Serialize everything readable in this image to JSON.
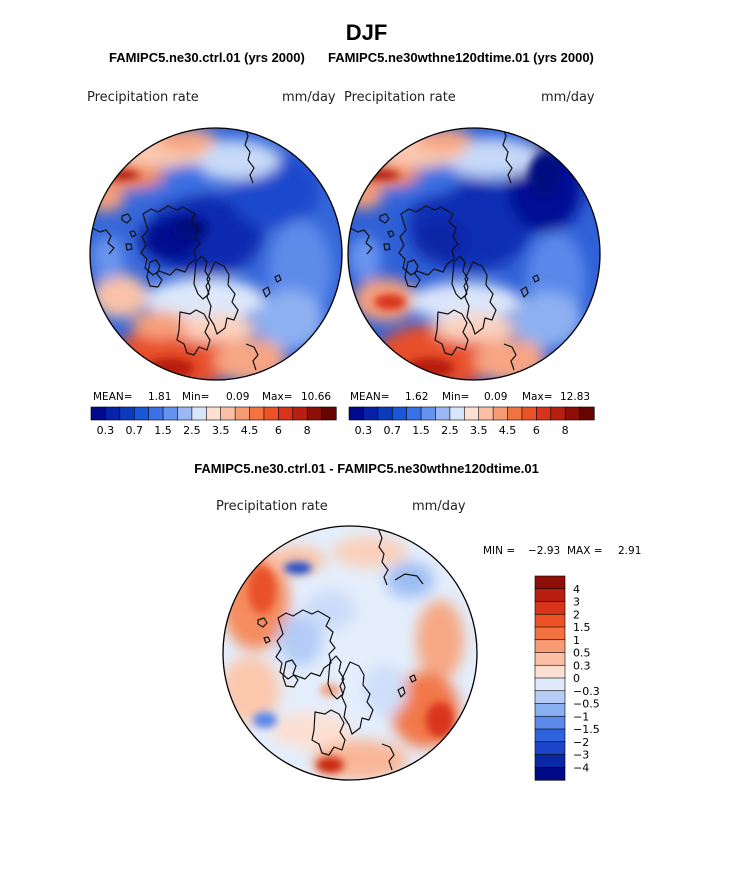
{
  "figure": {
    "main_title": "DJF",
    "left_run_title": "FAMIPC5.ne30.ctrl.01 (yrs 2000)",
    "right_run_title": "FAMIPC5.ne30wthne120dtime.01 (yrs 2000)",
    "diff_title": "FAMIPC5.ne30.ctrl.01 - FAMIPC5.ne30wthne120dtime.01"
  },
  "chart_data": [
    {
      "type": "heatmap",
      "projection": "north-polar-stereographic",
      "variable": "Precipitation rate",
      "units": "mm/day",
      "run": "FAMIPC5.ne30.ctrl.01 (yrs 2000)",
      "stats": {
        "mean_label": "MEAN=",
        "mean": "1.81",
        "min_label": "Min=",
        "min": "0.09",
        "max_label": "Max=",
        "max": "10.66"
      },
      "contour_levels": [
        0.2,
        0.3,
        0.5,
        0.7,
        1,
        1.5,
        2,
        2.5,
        3,
        3.5,
        4,
        4.5,
        5,
        6,
        7,
        8
      ],
      "colorbar_tick_labels": [
        "0.3",
        "0.7",
        "1.5",
        "2.5",
        "3.5",
        "4.5",
        "6",
        "8"
      ],
      "colors": [
        "#000a8c",
        "#0522a8",
        "#0a3bbf",
        "#1a56d8",
        "#3a71e6",
        "#6592ee",
        "#9cb8f4",
        "#d8e6fb",
        "#fde0d2",
        "#fbbfa4",
        "#f79b74",
        "#f2733f",
        "#ec5224",
        "#d8341a",
        "#b81f11",
        "#8e0f08",
        "#660400"
      ]
    },
    {
      "type": "heatmap",
      "projection": "north-polar-stereographic",
      "variable": "Precipitation rate",
      "units": "mm/day",
      "run": "FAMIPC5.ne30wthne120dtime.01 (yrs 2000)",
      "stats": {
        "mean_label": "MEAN=",
        "mean": "1.62",
        "min_label": "Min=",
        "min": "0.09",
        "max_label": "Max=",
        "max": "12.83"
      },
      "contour_levels": [
        0.2,
        0.3,
        0.5,
        0.7,
        1,
        1.5,
        2,
        2.5,
        3,
        3.5,
        4,
        4.5,
        5,
        6,
        7,
        8
      ],
      "colorbar_tick_labels": [
        "0.3",
        "0.7",
        "1.5",
        "2.5",
        "3.5",
        "4.5",
        "6",
        "8"
      ],
      "colors": [
        "#000a8c",
        "#0522a8",
        "#0a3bbf",
        "#1a56d8",
        "#3a71e6",
        "#6592ee",
        "#9cb8f4",
        "#d8e6fb",
        "#fde0d2",
        "#fbbfa4",
        "#f79b74",
        "#f2733f",
        "#ec5224",
        "#d8341a",
        "#b81f11",
        "#8e0f08",
        "#660400"
      ]
    },
    {
      "type": "heatmap",
      "projection": "north-polar-stereographic",
      "variable": "Precipitation rate",
      "units": "mm/day",
      "run": "FAMIPC5.ne30.ctrl.01 - FAMIPC5.ne30wthne120dtime.01",
      "stats": {
        "min_label": "MIN =",
        "min": "−2.93",
        "max_label": "MAX =",
        "max": "2.91"
      },
      "colorbar_tick_labels": [
        "4",
        "3",
        "2",
        "1.5",
        "1",
        "0.5",
        "0.3",
        "0",
        "−0.3",
        "−0.5",
        "−1",
        "−1.5",
        "−2",
        "−3",
        "−4"
      ],
      "colors": [
        "#8e0f08",
        "#b81f11",
        "#d8341a",
        "#ec5224",
        "#f2733f",
        "#f79b74",
        "#fbbfa4",
        "#fde0d2",
        "#deeafb",
        "#b7cdf6",
        "#8ab0f1",
        "#5c8aeb",
        "#2f63de",
        "#1a45c8",
        "#0a28a6",
        "#000a86"
      ]
    }
  ]
}
